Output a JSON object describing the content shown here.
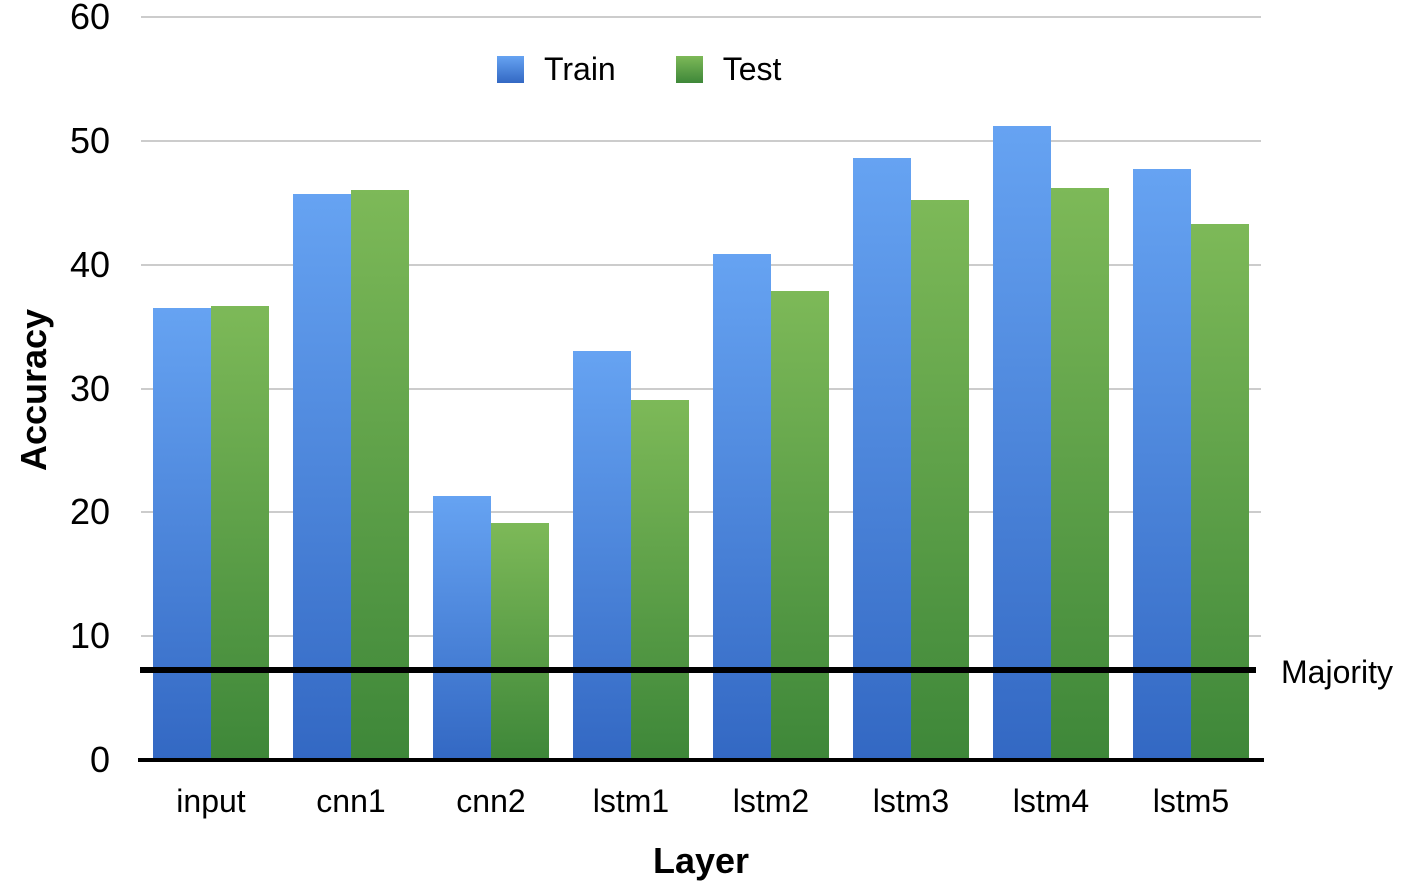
{
  "chart_data": {
    "type": "bar",
    "title": "",
    "xlabel": "Layer",
    "ylabel": "Accuracy",
    "categories": [
      "input",
      "cnn1",
      "cnn2",
      "lstm1",
      "lstm2",
      "lstm3",
      "lstm4",
      "lstm5"
    ],
    "series": [
      {
        "name": "Train",
        "color_top": "#66a3f2",
        "color_bottom": "#3368c3",
        "values": [
          36.5,
          45.7,
          21.3,
          33.0,
          40.9,
          48.6,
          51.2,
          47.7
        ]
      },
      {
        "name": "Test",
        "color_top": "#7db958",
        "color_bottom": "#3e8739",
        "values": [
          36.7,
          46.0,
          19.1,
          29.1,
          37.9,
          45.2,
          46.2,
          43.3
        ]
      }
    ],
    "ylim": [
      0,
      60
    ],
    "y_ticks": [
      0,
      10,
      20,
      30,
      40,
      50,
      60
    ],
    "grid": true,
    "grid_color": "#cccccc",
    "axis_color": "#000000",
    "background": "#ffffff",
    "legend_position": "top-center",
    "annotation": {
      "label": "Majority",
      "value": 7.3,
      "color": "#000000"
    }
  }
}
